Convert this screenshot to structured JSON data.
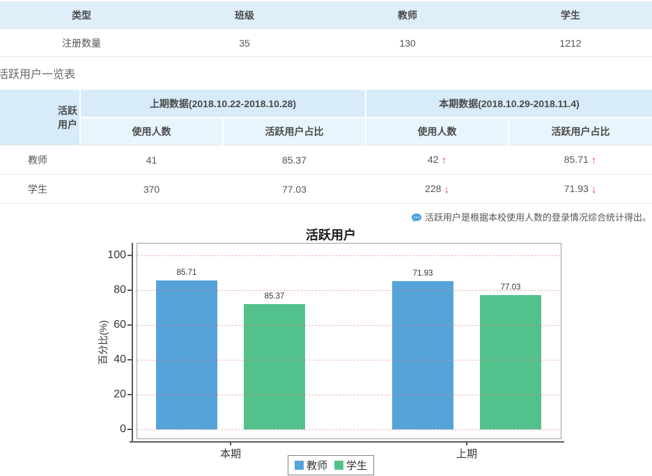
{
  "registration_table": {
    "headers": [
      "类型",
      "班级",
      "教师",
      "学生"
    ],
    "row_label": "注册数量",
    "values": [
      "35",
      "130",
      "1212"
    ]
  },
  "section_title": "活跃用户一览表",
  "active_table": {
    "corner_header": "活跃用户",
    "prev_period_header": "上期数据(2018.10.22-2018.10.28)",
    "cur_period_header": "本期数据(2018.10.29-2018.11.4)",
    "sub_headers": {
      "prev_count": "使用人数",
      "prev_ratio": "活跃用户占比",
      "cur_count": "使用人数",
      "cur_ratio": "活跃用户占比"
    },
    "rows": [
      {
        "label": "教师",
        "prev_count": "41",
        "prev_ratio": "85.37",
        "cur_count": "42",
        "cur_count_arrow": "↑",
        "cur_count_trend": "up",
        "cur_ratio": "85.71",
        "cur_ratio_arrow": "↑",
        "cur_ratio_trend": "up"
      },
      {
        "label": "学生",
        "prev_count": "370",
        "prev_ratio": "77.03",
        "cur_count": "228",
        "cur_count_arrow": "↓",
        "cur_count_trend": "down",
        "cur_ratio": "71.93",
        "cur_ratio_arrow": "↓",
        "cur_ratio_trend": "down"
      }
    ]
  },
  "note": {
    "icon": "chat-bubble-icon",
    "text": "活跃用户是根据本校使用人数的登录情况综合统计得出。"
  },
  "chart_data": {
    "type": "bar",
    "title": "活跃用户",
    "ylabel": "百分比(%)",
    "categories": [
      "本期",
      "上期"
    ],
    "series": [
      {
        "name": "教师",
        "values": [
          85.71,
          85.37
        ],
        "color": "#55A3D9"
      },
      {
        "name": "学生",
        "values": [
          71.93,
          77.03
        ],
        "color": "#53C18B"
      }
    ],
    "ylim": [
      0,
      100
    ],
    "yticks": [
      0,
      20,
      40,
      60,
      80,
      100
    ],
    "grid": "dashed-pink-horizontal",
    "legend_position": "bottom",
    "value_labels": [
      [
        "85.71",
        "71.93"
      ],
      [
        "85.37",
        "77.03"
      ]
    ]
  },
  "colors": {
    "header_bg": "#DFEFFA",
    "period_header_bg": "#D7EBF9",
    "sub_header_bg": "#E9F5FD",
    "trend_red": "#E23E3E",
    "note_icon_blue": "#4DA3DF",
    "bar_blue": "#55A3D9",
    "bar_green": "#53C18B"
  }
}
